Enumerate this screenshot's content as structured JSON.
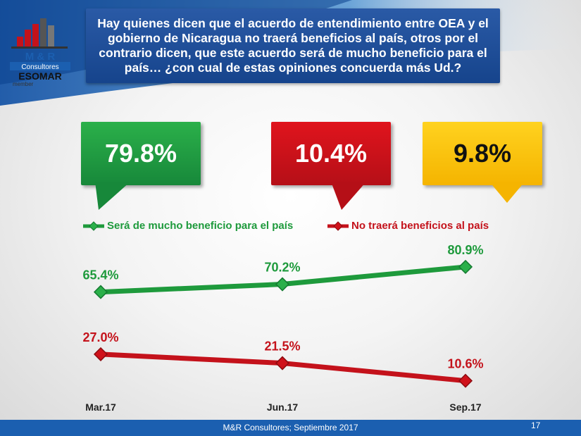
{
  "question": "Hay quienes dicen que el acuerdo de entendimiento entre OEA y el gobierno de Nicaragua no traerá beneficios al país, otros por el contrario dicen, que este acuerdo será de mucho beneficio para el país… ¿con cual de estas opiniones concuerda más Ud.?",
  "logo": {
    "line1": "M & R",
    "line2": "Consultores",
    "line3": "ESOMAR",
    "line4": "member"
  },
  "callouts": [
    {
      "value": "79.8%",
      "color": "#1e9a3c"
    },
    {
      "value": "10.4%",
      "color": "#d0121b"
    },
    {
      "value": "9.8%",
      "color": "#ffc000"
    }
  ],
  "chart_data": {
    "type": "line",
    "categories": [
      "Mar.17",
      "Jun.17",
      "Sep.17"
    ],
    "series": [
      {
        "name": "Será de mucho beneficio para el país",
        "values": [
          65.4,
          70.2,
          80.9
        ],
        "labels": [
          "65.4%",
          "70.2%",
          "80.9%"
        ],
        "color": "#1e9a3c"
      },
      {
        "name": "No traerá beneficios al país",
        "values": [
          27.0,
          21.5,
          10.6
        ],
        "labels": [
          "27.0%",
          "21.5%",
          "10.6%"
        ],
        "color": "#c4121b"
      }
    ],
    "ylim": [
      0,
      100
    ],
    "legend": "top"
  },
  "footer": {
    "source": "M&R Consultores; Septiembre 2017",
    "page": "17"
  }
}
